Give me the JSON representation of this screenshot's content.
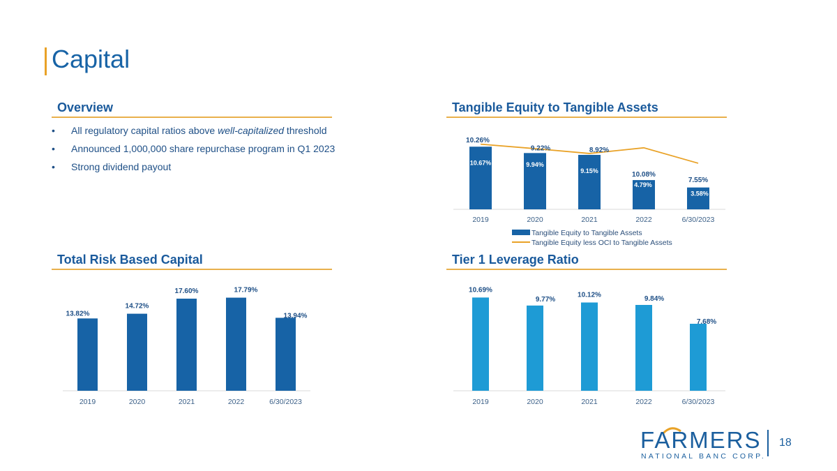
{
  "page": {
    "title": "Capital",
    "page_number": "18"
  },
  "overview": {
    "title": "Overview",
    "bullets": [
      {
        "bullet": "•",
        "before": "All regulatory capital ratios above ",
        "italic": "well-capitalized",
        "after": " threshold"
      },
      {
        "bullet": "•",
        "before": "Announced 1,000,000 share repurchase program in Q1 2023",
        "italic": "",
        "after": ""
      },
      {
        "bullet": "•",
        "before": "Strong dividend payout",
        "italic": "",
        "after": ""
      }
    ]
  },
  "logo": {
    "name": "FARMERS",
    "subtitle": "NATIONAL BANC CORP."
  },
  "colors": {
    "dark_blue": "#1763a6",
    "light_blue": "#1e9bd5",
    "orange": "#e9a227"
  },
  "chart_data": [
    {
      "id": "tangible",
      "type": "bar",
      "title": "Tangible Equity to Tangible Assets",
      "categories": [
        "2019",
        "2020",
        "2021",
        "2022",
        "6/30/2023"
      ],
      "series": [
        {
          "name": "Tangible Equity to Tangible Assets",
          "type": "bar",
          "values": [
            10.26,
            9.22,
            8.92,
            4.79,
            3.58
          ],
          "labels": [
            "10.26%",
            "9.22%",
            "8.92%",
            "4.79%",
            "3.58%"
          ]
        },
        {
          "name": "Tangible Equity less OCI to Tangible Assets",
          "type": "line",
          "values": [
            10.67,
            9.94,
            9.15,
            10.08,
            7.55
          ],
          "labels": [
            "10.67%",
            "9.94%",
            "9.15%",
            "10.08%",
            "7.55%"
          ]
        }
      ],
      "legend": "bottom",
      "ylim": [
        0,
        12
      ]
    },
    {
      "id": "trbc",
      "type": "bar",
      "title": "Total Risk Based Capital",
      "categories": [
        "2019",
        "2020",
        "2021",
        "2022",
        "6/30/2023"
      ],
      "series": [
        {
          "name": "",
          "values": [
            13.82,
            14.72,
            17.6,
            17.79,
            13.94
          ],
          "labels": [
            "13.82%",
            "14.72%",
            "17.60%",
            "17.79%",
            "13.94%"
          ]
        }
      ],
      "ylim": [
        0,
        20
      ]
    },
    {
      "id": "tier1",
      "type": "bar",
      "title": "Tier 1 Leverage Ratio",
      "categories": [
        "2019",
        "2020",
        "2021",
        "2022",
        "6/30/2023"
      ],
      "series": [
        {
          "name": "",
          "values": [
            10.69,
            9.77,
            10.12,
            9.84,
            7.68
          ],
          "labels": [
            "10.69%",
            "9.77%",
            "10.12%",
            "9.84%",
            "7.68%"
          ]
        }
      ],
      "ylim": [
        0,
        12
      ]
    }
  ]
}
